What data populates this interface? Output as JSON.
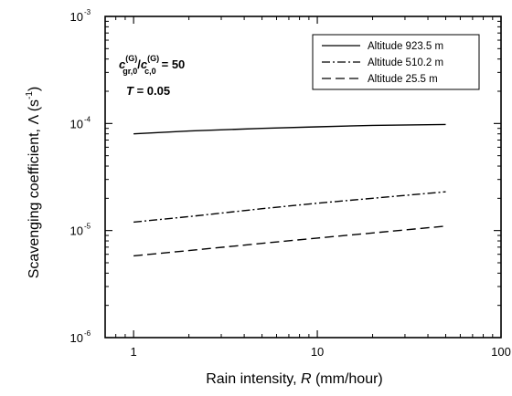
{
  "chart_data": {
    "type": "line",
    "x_scale": "log",
    "y_scale": "log",
    "xlim": [
      0.7,
      100
    ],
    "ylim": [
      1e-06,
      0.001
    ],
    "xticks": [
      {
        "value": 1,
        "label": "1"
      },
      {
        "value": 10,
        "label": "10"
      },
      {
        "value": 100,
        "label": "100"
      }
    ],
    "yticks": [
      {
        "value": 1e-06,
        "base": "10",
        "exp": "-6"
      },
      {
        "value": 1e-05,
        "base": "10",
        "exp": "-5"
      },
      {
        "value": 0.0001,
        "base": "10",
        "exp": "-4"
      },
      {
        "value": 0.001,
        "base": "10",
        "exp": "-3"
      }
    ],
    "xlabel": {
      "prefix": "Rain intensity, ",
      "symbol": "R",
      "suffix": " (mm/hour)"
    },
    "ylabel": {
      "prefix": "Scavenging coefficient, Λ (s",
      "exp": "-1",
      "suffix": ")"
    },
    "legend_position": "top-right",
    "annotations": {
      "ratio_value": "= 50",
      "c_symbol": "c",
      "sup_g": "(G)",
      "sub_gr": "gr,0",
      "sub_c": "c,0",
      "slash": "/",
      "t_symbol": "T",
      "t_value": " = 0.05"
    },
    "series": [
      {
        "name": "Altitude 923.5 m",
        "dash": "solid",
        "x": [
          1,
          2,
          5,
          10,
          20,
          50
        ],
        "y": [
          8e-05,
          8.5e-05,
          9e-05,
          9.3e-05,
          9.6e-05,
          9.8e-05
        ]
      },
      {
        "name": "Altitude 510.2 m",
        "dash": "dashdot",
        "x": [
          1,
          2,
          5,
          10,
          20,
          50
        ],
        "y": [
          1.2e-05,
          1.35e-05,
          1.6e-05,
          1.8e-05,
          2e-05,
          2.3e-05
        ]
      },
      {
        "name": "Altitude 25.5 m",
        "dash": "dash",
        "x": [
          1,
          2,
          5,
          10,
          20,
          50
        ],
        "y": [
          5.8e-06,
          6.5e-06,
          7.6e-06,
          8.5e-06,
          9.5e-06,
          1.1e-05
        ]
      }
    ]
  }
}
